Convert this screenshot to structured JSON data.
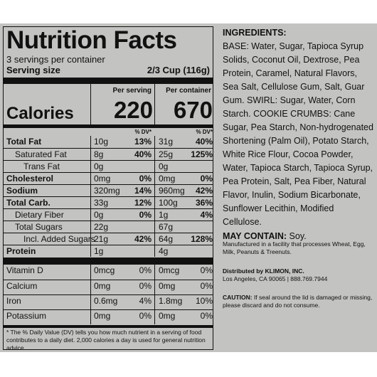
{
  "nutrition": {
    "title": "Nutrition Facts",
    "servings": "3 servings per container",
    "serving_size_label": "Serving size",
    "serving_size_value": "2/3 Cup (116g)",
    "per_serving_label": "Per serving",
    "per_container_label": "Per container",
    "calories_label": "Calories",
    "calories_serving": "220",
    "calories_container": "670",
    "dv_label": "% DV*",
    "rows": [
      {
        "name": "Total Fat",
        "bold": true,
        "a1": "10g",
        "p1": "13%",
        "a2": "31g",
        "p2": "40%"
      },
      {
        "name": "Saturated Fat",
        "indent": 1,
        "a1": "8g",
        "p1": "40%",
        "a2": "25g",
        "p2": "125%"
      },
      {
        "name": "Trans Fat",
        "indent": 2,
        "a1": "0g",
        "p1": "",
        "a2": "0g",
        "p2": ""
      },
      {
        "name": "Cholesterol",
        "bold": true,
        "a1": "0mg",
        "p1": "0%",
        "a2": "0mg",
        "p2": "0%"
      },
      {
        "name": "Sodium",
        "bold": true,
        "a1": "320mg",
        "p1": "14%",
        "a2": "960mg",
        "p2": "42%"
      },
      {
        "name": "Total Carb.",
        "bold": true,
        "a1": "33g",
        "p1": "12%",
        "a2": "100g",
        "p2": "36%"
      },
      {
        "name": "Dietary Fiber",
        "indent": 1,
        "a1": "0g",
        "p1": "0%",
        "a2": "1g",
        "p2": "4%"
      },
      {
        "name": "Total Sugars",
        "indent": 1,
        "a1": "22g",
        "p1": "",
        "a2": "67g",
        "p2": ""
      },
      {
        "name": "Incl. Added Sugars",
        "indent": 2,
        "a1": "21g",
        "p1": "42%",
        "a2": "64g",
        "p2": "128%"
      },
      {
        "name": "Protein",
        "bold": true,
        "a1": "1g",
        "p1": "",
        "a2": "4g",
        "p2": ""
      }
    ],
    "vitamins": [
      {
        "name": "Vitamin D",
        "a1": "0mcg",
        "p1": "0%",
        "a2": "0mcg",
        "p2": "0%"
      },
      {
        "name": "Calcium",
        "a1": "0mg",
        "p1": "0%",
        "a2": "0mg",
        "p2": "0%"
      },
      {
        "name": "Iron",
        "a1": "0.6mg",
        "p1": "4%",
        "a2": "1.8mg",
        "p2": "10%"
      },
      {
        "name": "Potassium",
        "a1": "0mg",
        "p1": "0%",
        "a2": "0mg",
        "p2": "0%"
      }
    ],
    "footnote": "* The % Daily Value (DV) tells you how much nutrient in a serving of food contributes to a daily diet. 2,000 calories a day is used for general nutrition advice."
  },
  "ingredients": {
    "heading": "INGREDIENTS:",
    "base": "BASE: Water, Sugar, Tapioca Syrup Solids, Coconut Oil, Dextrose, Pea Protein, Caramel, Natural Flavors, Sea Salt, Cellulose Gum, Salt, Guar Gum.",
    "swirl": "SWIRL: Sugar, Water, Corn Starch.",
    "cookie": "COOKIE CRUMBS: Cane Sugar, Pea Starch, Non-hydrogenated Shortening (Palm Oil), Potato Starch, White Rice Flour, Cocoa Powder, Water, Tapioca Starch, Tapioca Syrup, Pea Protein, Salt, Pea Fiber, Natural Flavor, Inulin, Sodium Bicarbonate, Sunflower Lecithin, Modified Cellulose.",
    "may_contain_label": "MAY CONTAIN:",
    "may_contain_value": "Soy.",
    "facility": "Manufactured in a facility that processes Wheat, Egg, Milk, Peanuts & Treenuts.",
    "distributed_label": "Distributed by KLIMON, INC.",
    "address": "Los Angeles, CA 90065 | 888.769.7944",
    "caution_label": "CAUTION:",
    "caution_text": "If seal around the lid is damaged or missing, please discard and do not consume."
  }
}
